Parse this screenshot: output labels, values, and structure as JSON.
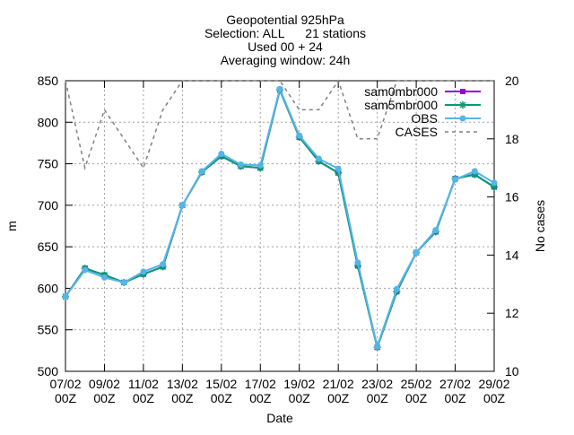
{
  "chart_data": {
    "type": "line",
    "title_lines": [
      "Geopotential 925hPa",
      "Selection: ALL      21 stations",
      "Used 00 + 24",
      "Averaging window: 24h"
    ],
    "xlabel": "Date",
    "ylabel": "m",
    "y2label": "No cases",
    "ylim": [
      500,
      850
    ],
    "y2lim": [
      10,
      20
    ],
    "yticks": [
      500,
      550,
      600,
      650,
      700,
      750,
      800,
      850
    ],
    "y2ticks": [
      10,
      12,
      14,
      16,
      18,
      20
    ],
    "xlim": [
      "2024-02-07 00",
      "2024-02-29 00"
    ],
    "xticks": [
      {
        "x": "2024-02-07 00",
        "line1": "07/02",
        "line2": "00Z"
      },
      {
        "x": "2024-02-09 00",
        "line1": "09/02",
        "line2": "00Z"
      },
      {
        "x": "2024-02-11 00",
        "line1": "11/02",
        "line2": "00Z"
      },
      {
        "x": "2024-02-13 00",
        "line1": "13/02",
        "line2": "00Z"
      },
      {
        "x": "2024-02-15 00",
        "line1": "15/02",
        "line2": "00Z"
      },
      {
        "x": "2024-02-17 00",
        "line1": "17/02",
        "line2": "00Z"
      },
      {
        "x": "2024-02-19 00",
        "line1": "19/02",
        "line2": "00Z"
      },
      {
        "x": "2024-02-21 00",
        "line1": "21/02",
        "line2": "00Z"
      },
      {
        "x": "2024-02-23 00",
        "line1": "23/02",
        "line2": "00Z"
      },
      {
        "x": "2024-02-25 00",
        "line1": "25/02",
        "line2": "00Z"
      },
      {
        "x": "2024-02-27 00",
        "line1": "27/02",
        "line2": "00Z"
      },
      {
        "x": "2024-02-29 00",
        "line1": "29/02",
        "line2": "00Z"
      }
    ],
    "x": [
      "2024-02-07 00",
      "2024-02-08 00",
      "2024-02-09 00",
      "2024-02-10 00",
      "2024-02-11 00",
      "2024-02-12 00",
      "2024-02-13 00",
      "2024-02-14 00",
      "2024-02-15 00",
      "2024-02-16 00",
      "2024-02-17 00",
      "2024-02-18 00",
      "2024-02-19 00",
      "2024-02-20 00",
      "2024-02-21 00",
      "2024-02-22 00",
      "2024-02-23 00",
      "2024-02-24 00",
      "2024-02-25 00",
      "2024-02-26 00",
      "2024-02-27 00",
      "2024-02-28 00",
      "2024-02-29 00"
    ],
    "grid": true,
    "legend_position": "top-right",
    "series": [
      {
        "name": "sam0mbr000",
        "axis": "y",
        "color": "#9400d3",
        "marker": "square",
        "values": [
          590,
          624,
          616,
          607,
          617,
          626,
          700,
          740,
          759,
          747,
          745,
          839,
          782,
          753,
          739,
          627,
          529,
          596,
          643,
          668,
          732,
          737,
          722
        ]
      },
      {
        "name": "sam5mbr000",
        "axis": "y",
        "color": "#009e73",
        "marker": "star",
        "values": [
          590,
          624,
          616,
          607,
          617,
          626,
          700,
          740,
          759,
          747,
          745,
          839,
          782,
          753,
          739,
          627,
          529,
          596,
          643,
          668,
          732,
          737,
          722
        ]
      },
      {
        "name": "OBS",
        "axis": "y",
        "color": "#56b4e9",
        "marker": "circle",
        "values": [
          590,
          622,
          613,
          607,
          620,
          629,
          700,
          741,
          762,
          749,
          748,
          840,
          784,
          756,
          744,
          631,
          530,
          599,
          643,
          670,
          731,
          741,
          727
        ]
      },
      {
        "name": "CASES",
        "axis": "y2",
        "color": "#808080",
        "dashed": true,
        "values": [
          20,
          17,
          19,
          18,
          17,
          19,
          20,
          20,
          20,
          20,
          20,
          20,
          19,
          19,
          20,
          18,
          18,
          20,
          20,
          20,
          20,
          20,
          20
        ]
      }
    ]
  }
}
